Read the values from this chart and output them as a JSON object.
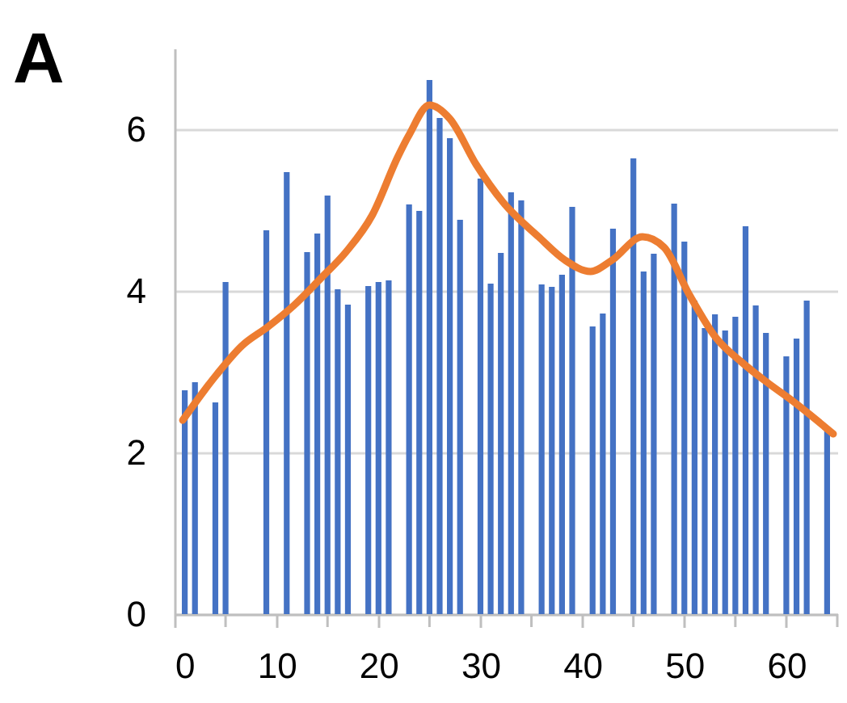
{
  "chart_data": {
    "type": "bar",
    "title": "A",
    "series": [
      {
        "type": "bar",
        "color": "#4472c4",
        "x": [
          1,
          2,
          4,
          5,
          9,
          11,
          13,
          14,
          15,
          16,
          17,
          19,
          20,
          21,
          23,
          24,
          25,
          26,
          27,
          28,
          30,
          31,
          32,
          33,
          34,
          36,
          37,
          38,
          39,
          41,
          42,
          43,
          45,
          46,
          47,
          49,
          50,
          51,
          52,
          53,
          54,
          55,
          56,
          57,
          58,
          60,
          61,
          62,
          64
        ],
        "values": [
          2.77,
          2.87,
          2.62,
          4.11,
          4.75,
          5.47,
          4.48,
          4.71,
          5.18,
          4.02,
          3.83,
          4.06,
          4.11,
          4.13,
          5.07,
          4.99,
          6.61,
          6.14,
          5.89,
          4.88,
          5.39,
          4.09,
          4.47,
          5.22,
          5.12,
          4.08,
          4.05,
          4.2,
          5.04,
          3.56,
          3.72,
          4.77,
          5.64,
          4.24,
          4.46,
          5.08,
          4.61,
          3.88,
          3.54,
          3.71,
          3.51,
          3.68,
          4.8,
          3.82,
          3.48,
          3.19,
          3.41,
          3.88,
          2.3
        ]
      },
      {
        "type": "line",
        "color": "#ed7d31",
        "x": [
          0.8,
          4.1,
          6.6,
          9.2,
          11.7,
          14.3,
          16.8,
          19.4,
          21.9,
          23,
          25,
          27,
          29.6,
          32.2,
          35.7,
          38.3,
          40.8,
          42.9,
          45.9,
          48,
          50.5,
          53.1,
          55.6,
          58.2,
          60.7,
          64.6
        ],
        "values": [
          2.4,
          2.96,
          3.32,
          3.56,
          3.82,
          4.15,
          4.48,
          4.94,
          5.66,
          5.93,
          6.3,
          6.13,
          5.56,
          5.1,
          4.67,
          4.38,
          4.24,
          4.38,
          4.67,
          4.54,
          3.95,
          3.42,
          3.12,
          2.86,
          2.63,
          2.23
        ]
      }
    ],
    "xlim": [
      0,
      65
    ],
    "xticks": [
      0,
      {
        "value": 5,
        "label": null
      },
      10,
      {
        "value": 15,
        "label": null
      },
      20,
      {
        "value": 25,
        "label": null
      },
      30,
      {
        "value": 35,
        "label": null
      },
      40,
      {
        "value": 45,
        "label": null
      },
      50,
      {
        "value": 55,
        "label": null
      },
      60,
      {
        "value": 65,
        "label": null
      }
    ],
    "ylim": [
      0,
      7
    ],
    "yticks": [
      0,
      2,
      4,
      6
    ],
    "grid": "y",
    "legend": false,
    "marker": "none",
    "line_style": "solid"
  }
}
